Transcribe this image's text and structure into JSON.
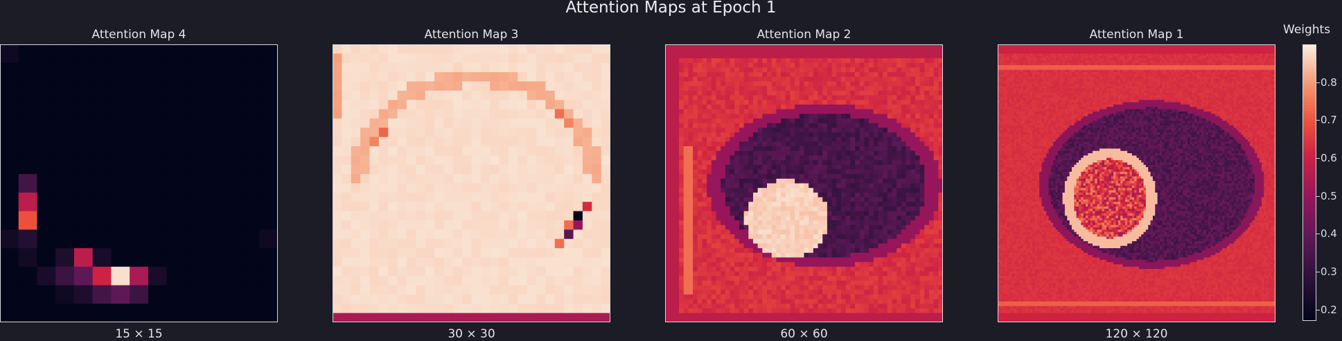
{
  "figure": {
    "title": "Attention Maps at Epoch 1",
    "background": "#1c1c27"
  },
  "chart_data": [
    {
      "type": "heatmap",
      "title": "Attention Map 4",
      "xlabel": "15 × 15",
      "grid_size": [
        15,
        15
      ],
      "colormap": "rocket",
      "note_values": [
        {
          "row": 7,
          "col": 1,
          "value": 0.35
        },
        {
          "row": 8,
          "col": 1,
          "value": 0.55
        },
        {
          "row": 9,
          "col": 1,
          "value": 0.72
        },
        {
          "row": 10,
          "col": 1,
          "value": 0.22
        },
        {
          "row": 11,
          "col": 4,
          "value": 0.55
        },
        {
          "row": 12,
          "col": 6,
          "value": 0.88
        },
        {
          "row": 12,
          "col": 5,
          "value": 0.58
        },
        {
          "row": 12,
          "col": 7,
          "value": 0.48
        },
        {
          "row": 12,
          "col": 4,
          "value": 0.35
        }
      ],
      "value_range": [
        0.17,
        0.9
      ]
    },
    {
      "type": "heatmap",
      "title": "Attention Map 3",
      "xlabel": "30 × 30",
      "grid_size": [
        30,
        30
      ],
      "colormap": "rocket",
      "value_range": [
        0.17,
        0.9
      ]
    },
    {
      "type": "heatmap",
      "title": "Attention Map 2",
      "xlabel": "60 × 60",
      "grid_size": [
        60,
        60
      ],
      "colormap": "rocket",
      "value_range": [
        0.17,
        0.9
      ]
    },
    {
      "type": "heatmap",
      "title": "Attention Map 1",
      "xlabel": "120 × 120",
      "grid_size": [
        120,
        120
      ],
      "colormap": "rocket",
      "value_range": [
        0.17,
        0.9
      ]
    }
  ],
  "colorbar": {
    "label": "Weights",
    "ticks": [
      "0.2",
      "0.3",
      "0.4",
      "0.5",
      "0.6",
      "0.7",
      "0.8"
    ],
    "tick_values": [
      0.2,
      0.3,
      0.4,
      0.5,
      0.6,
      0.7,
      0.8
    ],
    "range": [
      0.17,
      0.9
    ]
  }
}
